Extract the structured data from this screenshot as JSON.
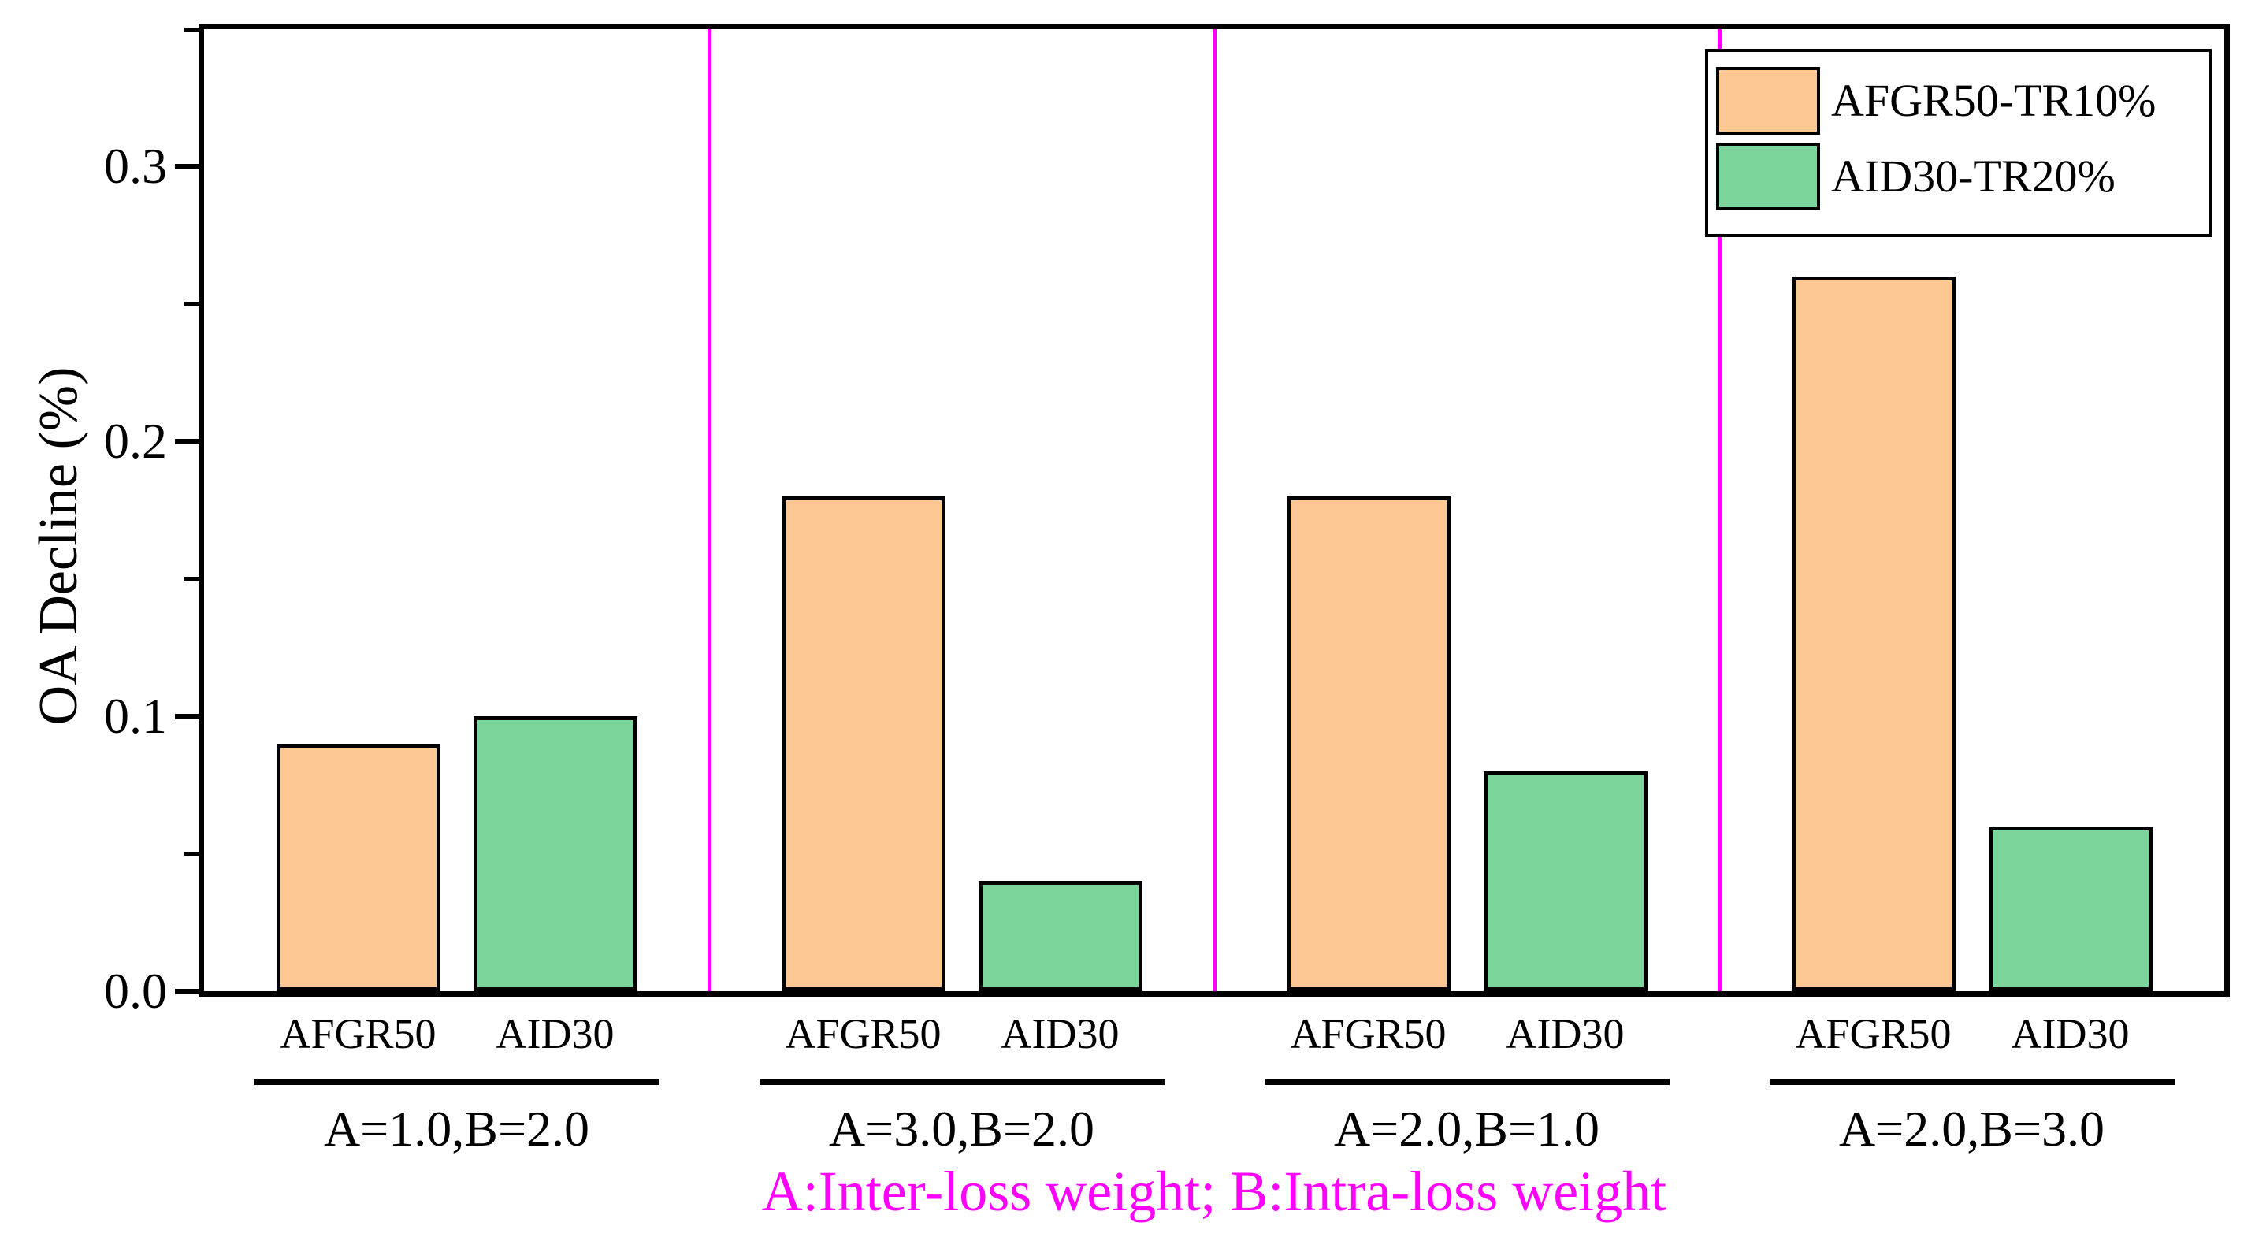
{
  "figure": {
    "ylabel": "OA Decline (%)",
    "caption": "A:Inter-loss weight; B:Intra-loss weight"
  },
  "chart_data": {
    "type": "bar",
    "title": "",
    "ylabel": "OA Decline (%)",
    "xlabel": "",
    "ylim": [
      0,
      0.35
    ],
    "yticks": [
      "0.0",
      "0.1",
      "0.2",
      "0.3"
    ],
    "minor_yticks": [
      0.05,
      0.15,
      0.25,
      0.35
    ],
    "grid": false,
    "categories": [
      "A=1.0,B=2.0",
      "A=3.0,B=2.0",
      "A=2.0,B=1.0",
      "A=2.0,B=3.0"
    ],
    "bar_labels": [
      "AFGR50",
      "AID30"
    ],
    "series": [
      {
        "name": "AFGR50-TR10%",
        "color": "#FDC894",
        "values": [
          0.09,
          0.18,
          0.18,
          0.26
        ]
      },
      {
        "name": "AID30-TR20%",
        "color": "#7CD59B",
        "values": [
          0.1,
          0.04,
          0.08,
          0.06
        ]
      }
    ],
    "legend": {
      "position": "top-right",
      "entries": [
        "AFGR50-TR10%",
        "AID30-TR20%"
      ]
    },
    "separator_color": "#FF00FF",
    "caption": "A:Inter-loss weight; B:Intra-loss weight",
    "axis_color": "#000000"
  }
}
